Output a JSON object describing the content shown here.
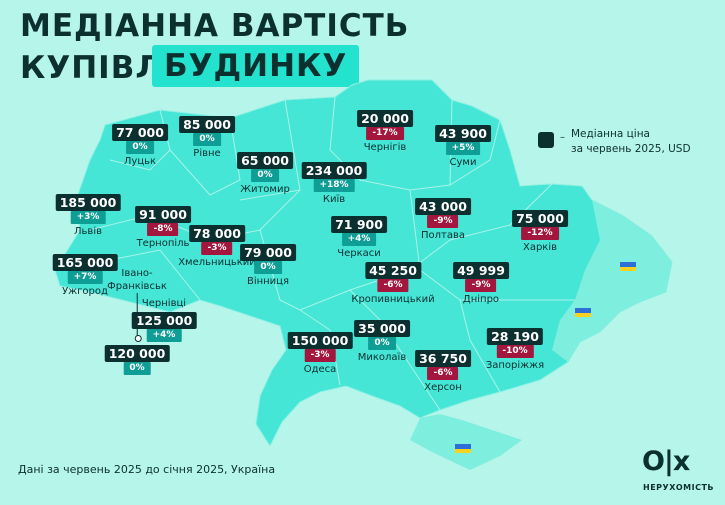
{
  "title": {
    "line1": "МЕДІАННА ВАРТІСТЬ",
    "line2": "КУПІВЛІ",
    "highlight": "БУДИНКУ"
  },
  "legend": {
    "dash": "–",
    "text_line1": "Медіанна ціна",
    "text_line2": "за червень 2025, USD"
  },
  "colors": {
    "background": "#b6f5ea",
    "map": "#45e6d6",
    "label": "#0c2f30",
    "increase": "#0f9e96",
    "decrease": "#a3163d",
    "highlight": "#23e3cf"
  },
  "regions": [
    {
      "name": "Луцьк",
      "price": "77 000",
      "change": "0%"
    },
    {
      "name": "Рівне",
      "price": "85 000",
      "change": "0%"
    },
    {
      "name": "Житомир",
      "price": "65 000",
      "change": "0%"
    },
    {
      "name": "Київ",
      "price": "234 000",
      "change": "+18%"
    },
    {
      "name": "Чернігів",
      "price": "20 000",
      "change": "-17%"
    },
    {
      "name": "Суми",
      "price": "43 900",
      "change": "+5%"
    },
    {
      "name": "Львів",
      "price": "185 000",
      "change": "+3%"
    },
    {
      "name": "Тернопіль",
      "price": "91 000",
      "change": "-8%"
    },
    {
      "name": "Хмельницький",
      "price": "78 000",
      "change": "-3%"
    },
    {
      "name": "Вінниця",
      "price": "79 000",
      "change": "0%"
    },
    {
      "name": "Черкаси",
      "price": "71 900",
      "change": "+4%"
    },
    {
      "name": "Полтава",
      "price": "43 000",
      "change": "-9%"
    },
    {
      "name": "Харків",
      "price": "75 000",
      "change": "-12%"
    },
    {
      "name": "Ужгород",
      "price": "165 000",
      "change": "+7%"
    },
    {
      "name": "Кропивницький",
      "price": "45 250",
      "change": "-6%"
    },
    {
      "name": "Дніпро",
      "price": "49 999",
      "change": "-9%"
    },
    {
      "name": "Чернівці",
      "price": "125 000",
      "change": "+4%"
    },
    {
      "name": "Івано-Франківськ",
      "price": "120 000",
      "change": "0%"
    },
    {
      "name": "Одеса",
      "price": "150 000",
      "change": "-3%"
    },
    {
      "name": "Миколаїв",
      "price": "35 000",
      "change": "0%"
    },
    {
      "name": "Херсон",
      "price": "36 750",
      "change": "-6%"
    },
    {
      "name": "Запоріжжя",
      "price": "28 190",
      "change": "-10%"
    }
  ],
  "footer": "Дані за червень 2025 до січня 2025, Україна",
  "logo": "OLX",
  "brand": "НЕРУХОМІСТЬ"
}
